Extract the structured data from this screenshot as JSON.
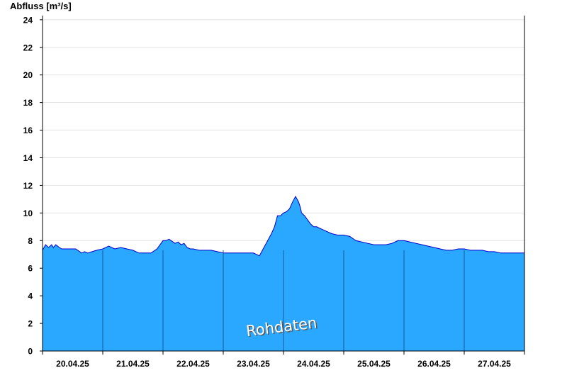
{
  "chart_data": {
    "type": "area",
    "ylabel": "Abfluss [m³/s]",
    "ylim": [
      0,
      24.3
    ],
    "yticks": [
      0,
      2,
      4,
      6,
      8,
      10,
      12,
      14,
      16,
      18,
      20,
      22,
      24
    ],
    "xlim": [
      0,
      8
    ],
    "day_labels": [
      "20.04.25",
      "21.04.25",
      "22.04.25",
      "23.04.25",
      "24.04.25",
      "25.04.25",
      "26.04.25",
      "27.04.25"
    ],
    "grid": true,
    "annotation": "Rohdaten",
    "colors": {
      "fill": "#2aa8ff",
      "line": "#0000cc",
      "grid": "#e3e3e3",
      "divider": "#1a5a9a"
    },
    "series": [
      {
        "x": [
          0.0,
          0.05,
          0.1,
          0.15,
          0.18,
          0.22,
          0.28,
          0.32,
          0.4,
          0.55,
          0.65,
          0.7,
          0.75,
          0.9,
          1.0,
          1.1,
          1.2,
          1.3,
          1.4,
          1.5,
          1.6,
          1.7,
          1.8,
          1.9,
          2.0,
          2.05,
          2.1,
          2.2,
          2.25,
          2.3,
          2.35,
          2.4,
          2.45,
          2.5,
          2.6,
          2.7,
          2.8,
          2.9,
          3.0,
          3.1,
          3.2,
          3.3,
          3.4,
          3.5,
          3.55,
          3.6,
          3.7,
          3.75,
          3.8,
          3.85,
          3.9,
          3.95,
          4.0,
          4.05,
          4.1,
          4.15,
          4.2,
          4.25,
          4.28,
          4.3,
          4.35,
          4.4,
          4.45,
          4.5,
          4.55,
          4.6,
          4.7,
          4.8,
          4.9,
          5.0,
          5.1,
          5.2,
          5.3,
          5.4,
          5.5,
          5.6,
          5.7,
          5.8,
          5.9,
          6.0,
          6.1,
          6.2,
          6.3,
          6.4,
          6.5,
          6.6,
          6.7,
          6.8,
          6.9,
          7.0,
          7.1,
          7.2,
          7.3,
          7.4,
          7.5,
          7.6,
          7.7,
          7.8,
          7.9,
          8.0
        ],
        "y": [
          7.3,
          7.7,
          7.5,
          7.7,
          7.5,
          7.7,
          7.5,
          7.4,
          7.4,
          7.4,
          7.1,
          7.2,
          7.1,
          7.3,
          7.4,
          7.6,
          7.4,
          7.5,
          7.4,
          7.3,
          7.1,
          7.1,
          7.1,
          7.4,
          8.0,
          8.0,
          8.1,
          7.8,
          7.9,
          7.7,
          7.8,
          7.5,
          7.4,
          7.4,
          7.3,
          7.3,
          7.3,
          7.2,
          7.1,
          7.1,
          7.1,
          7.1,
          7.1,
          7.1,
          7.0,
          6.9,
          7.7,
          8.1,
          8.5,
          9.0,
          9.8,
          9.8,
          10.0,
          10.1,
          10.3,
          10.8,
          11.2,
          10.8,
          10.4,
          10.0,
          9.8,
          9.5,
          9.2,
          9.0,
          9.0,
          8.9,
          8.7,
          8.5,
          8.4,
          8.4,
          8.3,
          8.0,
          7.9,
          7.8,
          7.7,
          7.7,
          7.7,
          7.8,
          8.0,
          8.0,
          7.9,
          7.8,
          7.7,
          7.6,
          7.5,
          7.4,
          7.3,
          7.3,
          7.4,
          7.4,
          7.3,
          7.3,
          7.3,
          7.2,
          7.2,
          7.1,
          7.1,
          7.1,
          7.1,
          7.1
        ]
      }
    ]
  }
}
